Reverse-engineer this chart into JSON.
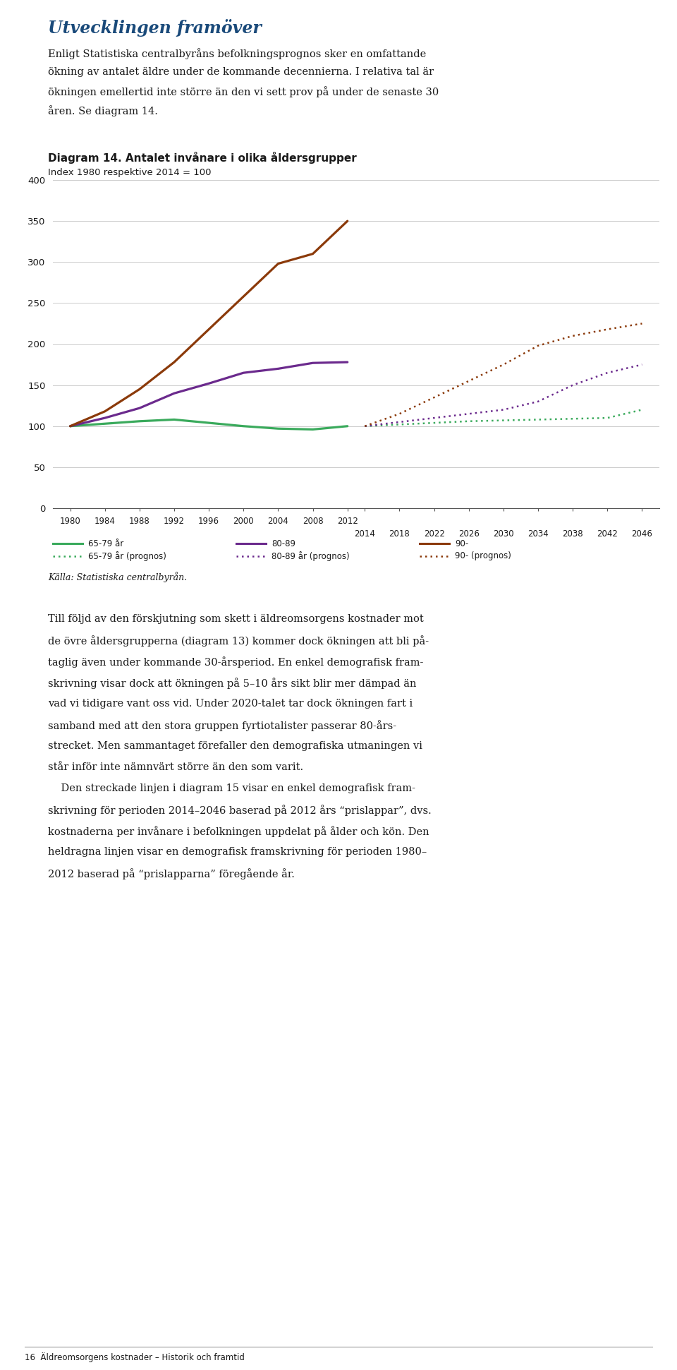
{
  "title": "Diagram 14. Antalet invånare i olika åldersgrupper",
  "subtitle": "Index 1980 respektive 2014 = 100",
  "source": "Källa: Statistiska centralbyrån.",
  "ylim": [
    0,
    400
  ],
  "yticks": [
    0,
    50,
    100,
    150,
    200,
    250,
    300,
    350,
    400
  ],
  "colors": {
    "green": "#3aaa5c",
    "purple": "#6b2a8d",
    "brown": "#8B3A0A"
  },
  "x_solid": [
    1980,
    1984,
    1988,
    1992,
    1996,
    2000,
    2004,
    2008,
    2012
  ],
  "x_dotted": [
    2014,
    2018,
    2022,
    2026,
    2030,
    2034,
    2038,
    2042,
    2046
  ],
  "green_solid": [
    100,
    103,
    106,
    108,
    104,
    100,
    97,
    96,
    100
  ],
  "purple_solid": [
    100,
    110,
    122,
    140,
    152,
    165,
    170,
    177,
    178
  ],
  "brown_solid": [
    100,
    118,
    145,
    178,
    218,
    258,
    298,
    310,
    350
  ],
  "green_dotted": [
    100,
    102,
    104,
    106,
    107,
    108,
    109,
    110,
    120
  ],
  "purple_dotted": [
    100,
    105,
    110,
    115,
    120,
    130,
    150,
    165,
    175
  ],
  "brown_dotted": [
    100,
    115,
    135,
    155,
    175,
    198,
    210,
    218,
    225
  ],
  "legend_solid": [
    "65-79 år",
    "80-89",
    "90-"
  ],
  "legend_dotted": [
    "65-79 år (prognos)",
    "80-89 år (prognos)",
    "90- (prognos)"
  ],
  "page_bg": "#ffffff",
  "chart_bg": "#ffffff",
  "grid_color": "#cccccc",
  "text_color": "#1a1a1a",
  "heading_color": "#1a4a7a",
  "heading": "Utvecklingen framöver",
  "body_top": [
    "Enligt Statistiska centralbyråns befolkningsprognos sker en omfattande",
    "ökning av antalet äldre under de kommande decennierna. I relativa tal är",
    "ökningen emellertid inte större än den vi sett prov på under de senaste 30",
    "åren. Se diagram 14."
  ],
  "body_bottom": [
    "Till följd av den förskjutning som skett i äldreomsorgens kostnader mot",
    "de övre åldersgrupperna (diagram 13) kommer dock ökningen att bli på-",
    "taglig även under kommande 30-årsperiod. En enkel demografisk fram-",
    "skrivning visar dock att ökningen på 5–10 års sikt blir mer dämpad än",
    "vad vi tidigare vant oss vid. Under 2020-talet tar dock ökningen fart i",
    "samband med att den stora gruppen fyrtiotalister passerar 80-års-",
    "strecket. Men sammantaget förefaller den demografiska utmaningen vi",
    "står inför inte nämnvärt större än den som varit.",
    "    Den streckade linjen i diagram 15 visar en enkel demografisk fram-",
    "skrivning för perioden 2014–2046 baserad på 2012 års “prislappar”, dvs.",
    "kostnaderna per invånare i befolkningen uppdelat på ålder och kön. Den",
    "heldragna linjen visar en demografisk framskrivning för perioden 1980–",
    "2012 baserad på “prislapparna” föregående år."
  ],
  "footer": "16  Äldreomsorgens kostnader – Historik och framtid"
}
